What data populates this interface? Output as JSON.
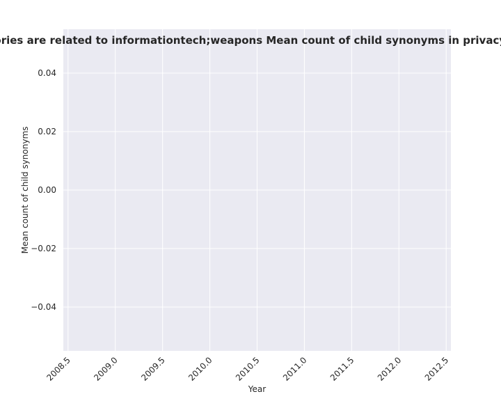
{
  "chart_data": {
    "type": "line",
    "title": "Categories are related to informationtech;weapons Mean count of child synonyms in privacy policies",
    "xlabel": "Year",
    "ylabel": "Mean count of child synonyms",
    "xlim": [
      2008.45,
      2012.55
    ],
    "ylim": [
      -0.055,
      0.055
    ],
    "x_ticks": [
      "2008.5",
      "2009.0",
      "2009.5",
      "2010.0",
      "2010.5",
      "2011.0",
      "2011.5",
      "2012.0",
      "2012.5"
    ],
    "x_tick_values": [
      2008.5,
      2009.0,
      2009.5,
      2010.0,
      2010.5,
      2011.0,
      2011.5,
      2012.0,
      2012.5
    ],
    "y_ticks": [
      "0.04",
      "0.02",
      "0.00",
      "−0.02",
      "−0.04"
    ],
    "y_tick_values": [
      0.04,
      0.02,
      0.0,
      -0.02,
      -0.04
    ],
    "series": [],
    "grid": true,
    "legend": "none",
    "colors": {
      "plot_background": "#eaeaf2",
      "grid": "#ffffff",
      "text": "#262626"
    }
  }
}
